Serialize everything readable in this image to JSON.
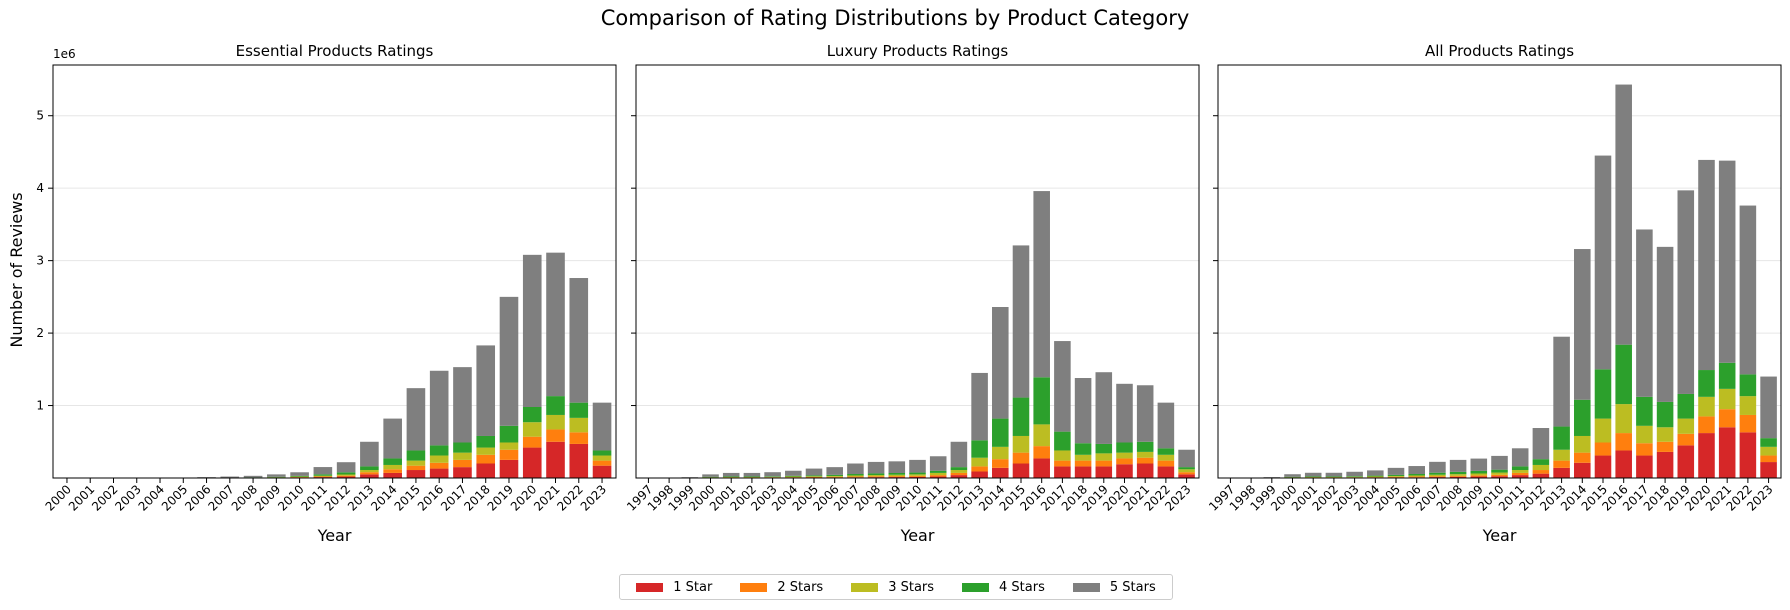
{
  "figure": {
    "title": "Comparison of Rating Distributions by Product Category",
    "ylabel": "Number of Reviews",
    "yscale_note": "1e6"
  },
  "legend": [
    {
      "label": "1 Star",
      "color": "#d62728"
    },
    {
      "label": "2 Stars",
      "color": "#ff7f0e"
    },
    {
      "label": "3 Stars",
      "color": "#bcbd22"
    },
    {
      "label": "4 Stars",
      "color": "#2ca02c"
    },
    {
      "label": "5 Stars",
      "color": "#7f7f7f"
    }
  ],
  "chart_data": [
    {
      "type": "bar",
      "stacked": true,
      "title": "Essential Products Ratings",
      "xlabel": "Year",
      "ylabel": "Number of Reviews",
      "ylim": [
        0,
        5.7
      ],
      "yunit_multiplier": "1e6",
      "yticks": [
        1,
        2,
        3,
        4,
        5
      ],
      "grid": "horizontal",
      "categories": [
        "2000",
        "2001",
        "2002",
        "2003",
        "2004",
        "2005",
        "2006",
        "2007",
        "2008",
        "2009",
        "2010",
        "2011",
        "2012",
        "2013",
        "2014",
        "2015",
        "2016",
        "2017",
        "2018",
        "2019",
        "2020",
        "2021",
        "2022",
        "2023"
      ],
      "series": [
        {
          "name": "1 Star",
          "values": [
            0,
            0,
            0,
            0,
            0,
            0,
            0.001,
            0.002,
            0.003,
            0.004,
            0.008,
            0.013,
            0.02,
            0.05,
            0.07,
            0.11,
            0.13,
            0.15,
            0.2,
            0.25,
            0.42,
            0.5,
            0.47,
            0.17
          ]
        },
        {
          "name": "2 Stars",
          "values": [
            0,
            0,
            0,
            0,
            0,
            0,
            0.001,
            0.001,
            0.002,
            0.003,
            0.005,
            0.008,
            0.012,
            0.03,
            0.05,
            0.06,
            0.08,
            0.1,
            0.12,
            0.14,
            0.15,
            0.17,
            0.16,
            0.07
          ]
        },
        {
          "name": "3 Stars",
          "values": [
            0,
            0,
            0,
            0,
            0,
            0,
            0.001,
            0.001,
            0.002,
            0.004,
            0.006,
            0.01,
            0.016,
            0.03,
            0.06,
            0.07,
            0.1,
            0.1,
            0.1,
            0.1,
            0.2,
            0.2,
            0.2,
            0.07
          ]
        },
        {
          "name": "4 Stars",
          "values": [
            0,
            0,
            0,
            0,
            0,
            0,
            0.001,
            0.002,
            0.003,
            0.006,
            0.01,
            0.02,
            0.03,
            0.05,
            0.09,
            0.14,
            0.14,
            0.14,
            0.16,
            0.23,
            0.21,
            0.26,
            0.21,
            0.07
          ]
        },
        {
          "name": "5 Stars",
          "values": [
            0,
            0,
            0,
            0,
            0,
            0.002,
            0.008,
            0.014,
            0.02,
            0.033,
            0.05,
            0.1,
            0.14,
            0.34,
            0.55,
            0.86,
            1.03,
            1.04,
            1.25,
            1.78,
            2.1,
            1.98,
            1.72,
            0.66
          ]
        }
      ]
    },
    {
      "type": "bar",
      "stacked": true,
      "title": "Luxury Products Ratings",
      "xlabel": "Year",
      "ylim": [
        0,
        5.7
      ],
      "yunit_multiplier": "1e6",
      "grid": "horizontal",
      "categories": [
        "1997",
        "1998",
        "1999",
        "2000",
        "2001",
        "2002",
        "2003",
        "2004",
        "2005",
        "2006",
        "2007",
        "2008",
        "2009",
        "2010",
        "2011",
        "2012",
        "2013",
        "2014",
        "2015",
        "2016",
        "2017",
        "2018",
        "2019",
        "2020",
        "2021",
        "2022",
        "2023"
      ],
      "series": [
        {
          "name": "1 Star",
          "values": [
            0,
            0,
            0.001,
            0.003,
            0.004,
            0.004,
            0.005,
            0.006,
            0.007,
            0.008,
            0.01,
            0.012,
            0.013,
            0.015,
            0.02,
            0.04,
            0.09,
            0.14,
            0.2,
            0.27,
            0.16,
            0.16,
            0.16,
            0.19,
            0.2,
            0.16,
            0.05
          ]
        },
        {
          "name": "2 Stars",
          "values": [
            0,
            0,
            0.001,
            0.003,
            0.004,
            0.004,
            0.005,
            0.006,
            0.007,
            0.008,
            0.01,
            0.012,
            0.013,
            0.015,
            0.02,
            0.03,
            0.07,
            0.12,
            0.15,
            0.17,
            0.08,
            0.08,
            0.08,
            0.08,
            0.08,
            0.08,
            0.03
          ]
        },
        {
          "name": "3 Stars",
          "values": [
            0,
            0,
            0.002,
            0.005,
            0.006,
            0.006,
            0.006,
            0.008,
            0.01,
            0.012,
            0.015,
            0.017,
            0.019,
            0.02,
            0.03,
            0.04,
            0.12,
            0.17,
            0.23,
            0.3,
            0.14,
            0.08,
            0.1,
            0.08,
            0.08,
            0.08,
            0.04
          ]
        },
        {
          "name": "4 Stars",
          "values": [
            0,
            0,
            0.002,
            0.006,
            0.008,
            0.008,
            0.008,
            0.01,
            0.012,
            0.015,
            0.02,
            0.022,
            0.024,
            0.025,
            0.03,
            0.04,
            0.24,
            0.39,
            0.53,
            0.65,
            0.26,
            0.16,
            0.13,
            0.14,
            0.14,
            0.09,
            0.03
          ]
        },
        {
          "name": "5 Stars",
          "values": [
            0,
            0.001,
            0.005,
            0.033,
            0.048,
            0.048,
            0.056,
            0.07,
            0.094,
            0.107,
            0.145,
            0.159,
            0.161,
            0.175,
            0.2,
            0.35,
            0.93,
            1.54,
            2.1,
            2.57,
            1.25,
            0.9,
            0.99,
            0.81,
            0.78,
            0.63,
            0.24
          ]
        }
      ]
    },
    {
      "type": "bar",
      "stacked": true,
      "title": "All Products Ratings",
      "xlabel": "Year",
      "ylim": [
        0,
        5.7
      ],
      "yunit_multiplier": "1e6",
      "grid": "horizontal",
      "categories": [
        "1997",
        "1998",
        "1999",
        "2000",
        "2001",
        "2002",
        "2003",
        "2004",
        "2005",
        "2006",
        "2007",
        "2008",
        "2009",
        "2010",
        "2011",
        "2012",
        "2013",
        "2014",
        "2015",
        "2016",
        "2017",
        "2018",
        "2019",
        "2020",
        "2021",
        "2022",
        "2023"
      ],
      "series": [
        {
          "name": "1 Star",
          "values": [
            0,
            0,
            0.001,
            0.003,
            0.004,
            0.004,
            0.005,
            0.006,
            0.008,
            0.01,
            0.013,
            0.016,
            0.02,
            0.025,
            0.04,
            0.06,
            0.14,
            0.21,
            0.31,
            0.38,
            0.31,
            0.36,
            0.45,
            0.62,
            0.7,
            0.63,
            0.22
          ]
        },
        {
          "name": "2 Stars",
          "values": [
            0,
            0,
            0.001,
            0.003,
            0.004,
            0.004,
            0.005,
            0.006,
            0.008,
            0.01,
            0.012,
            0.014,
            0.016,
            0.02,
            0.03,
            0.05,
            0.1,
            0.14,
            0.18,
            0.24,
            0.17,
            0.14,
            0.16,
            0.23,
            0.25,
            0.24,
            0.09
          ]
        },
        {
          "name": "3 Stars",
          "values": [
            0,
            0,
            0.002,
            0.005,
            0.006,
            0.006,
            0.007,
            0.009,
            0.012,
            0.015,
            0.02,
            0.023,
            0.026,
            0.03,
            0.04,
            0.07,
            0.15,
            0.23,
            0.33,
            0.4,
            0.24,
            0.2,
            0.21,
            0.27,
            0.28,
            0.26,
            0.12
          ]
        },
        {
          "name": "4 Stars",
          "values": [
            0,
            0,
            0.002,
            0.006,
            0.008,
            0.008,
            0.009,
            0.012,
            0.015,
            0.02,
            0.028,
            0.032,
            0.036,
            0.04,
            0.05,
            0.08,
            0.32,
            0.5,
            0.68,
            0.82,
            0.4,
            0.35,
            0.34,
            0.37,
            0.36,
            0.3,
            0.12
          ]
        },
        {
          "name": "5 Stars",
          "values": [
            0,
            0.001,
            0.006,
            0.035,
            0.05,
            0.05,
            0.06,
            0.072,
            0.097,
            0.11,
            0.15,
            0.165,
            0.17,
            0.19,
            0.25,
            0.43,
            1.24,
            2.08,
            2.95,
            3.59,
            2.31,
            2.14,
            2.81,
            2.9,
            2.79,
            2.33,
            0.85
          ]
        }
      ]
    }
  ]
}
